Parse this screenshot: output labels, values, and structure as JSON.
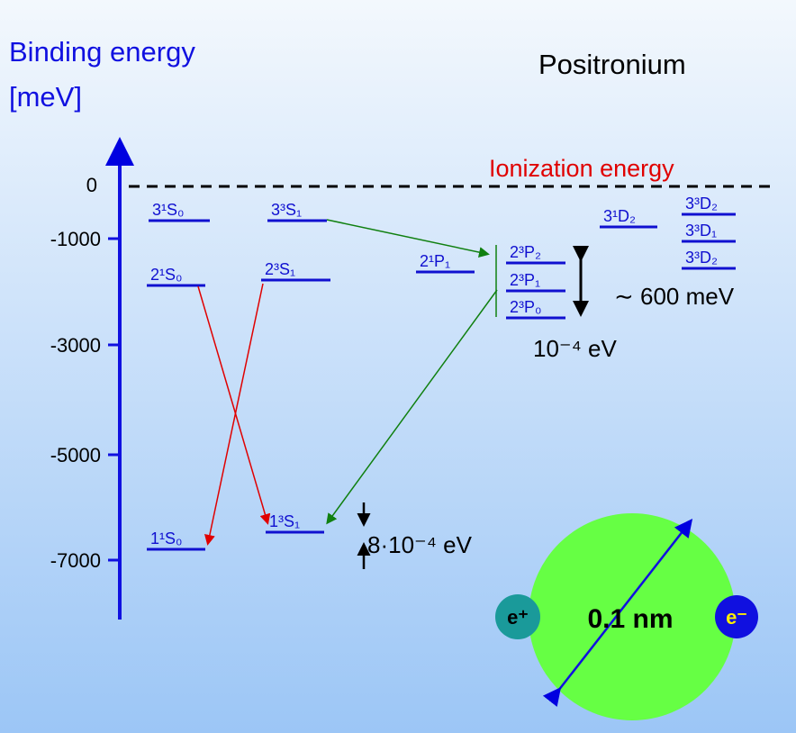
{
  "header": {
    "axis_title": "Binding energy",
    "axis_unit": "[meV]",
    "title": "Positronium",
    "ionization": "Ionization energy"
  },
  "axis": {
    "ticks": [
      "0",
      "-1000",
      "-3000",
      "-5000",
      "-7000"
    ]
  },
  "levels": [
    "3¹S₀",
    "3³S₁",
    "2¹S₀",
    "2³S₁",
    "2¹P₁",
    "2³P₂",
    "2³P₁",
    "2³P₀",
    "3¹D₂",
    "3³D₂",
    "3³D₁",
    "3³D₂",
    "1¹S₀",
    "1³S₁"
  ],
  "annotations": {
    "fine_structure": "∼ 600 meV",
    "p_split": "10⁻⁴ eV",
    "hfs": "8·10⁻⁴ eV"
  },
  "atom": {
    "positron": "e⁺",
    "electron": "e⁻",
    "size": "0.1 nm"
  }
}
